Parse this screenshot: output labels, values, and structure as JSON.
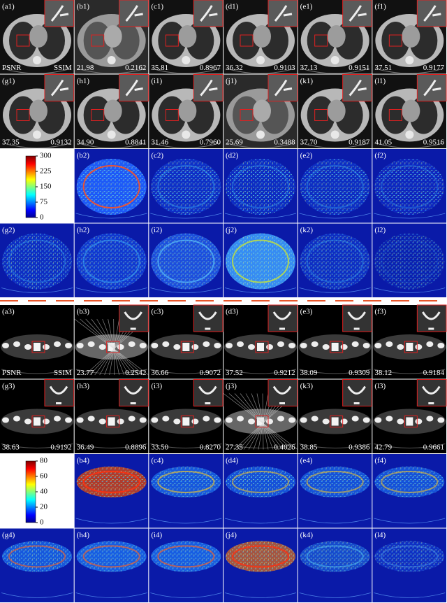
{
  "sections": [
    {
      "ct_panels": [
        {
          "label": "(a1)",
          "psnr": "PSNR",
          "ssim": "SSIM"
        },
        {
          "label": "(b1)",
          "psnr": "21.98",
          "ssim": "0.2162"
        },
        {
          "label": "(c1)",
          "psnr": "35.81",
          "ssim": "0.8967"
        },
        {
          "label": "(d1)",
          "psnr": "36.32",
          "ssim": "0.9103"
        },
        {
          "label": "(e1)",
          "psnr": "37.13",
          "ssim": "0.9151"
        },
        {
          "label": "(f1)",
          "psnr": "37.51",
          "ssim": "0.9177"
        },
        {
          "label": "(g1)",
          "psnr": "37.35",
          "ssim": "0.9132"
        },
        {
          "label": "(h1)",
          "psnr": "34.90",
          "ssim": "0.8841"
        },
        {
          "label": "(i1)",
          "psnr": "31.46",
          "ssim": "0.7960"
        },
        {
          "label": "(j1)",
          "psnr": "25.69",
          "ssim": "0.3488"
        },
        {
          "label": "(k1)",
          "psnr": "37.70",
          "ssim": "0.9187"
        },
        {
          "label": "(l1)",
          "psnr": "41.05",
          "ssim": "0.9516"
        }
      ],
      "error_labels": [
        "(b2)",
        "(c2)",
        "(d2)",
        "(e2)",
        "(f2)",
        "(g2)",
        "(h2)",
        "(i2)",
        "(j2)",
        "(k2)",
        "(l2)"
      ],
      "colorbar_ticks": [
        300,
        225,
        150,
        75,
        0
      ]
    },
    {
      "ct_panels": [
        {
          "label": "(a3)",
          "psnr": "PSNR",
          "ssim": "SSIM"
        },
        {
          "label": "(b3)",
          "psnr": "23.77",
          "ssim": "0.2542"
        },
        {
          "label": "(c3)",
          "psnr": "36.66",
          "ssim": "0.9072"
        },
        {
          "label": "(d3)",
          "psnr": "37.52",
          "ssim": "0.9212"
        },
        {
          "label": "(e3)",
          "psnr": "38.09",
          "ssim": "0.9309"
        },
        {
          "label": "(f3)",
          "psnr": "38.12",
          "ssim": "0.9184"
        },
        {
          "label": "(g3)",
          "psnr": "38.63",
          "ssim": "0.9192"
        },
        {
          "label": "(h3)",
          "psnr": "36.49",
          "ssim": "0.8896"
        },
        {
          "label": "(i3)",
          "psnr": "33.50",
          "ssim": "0.8270"
        },
        {
          "label": "(j3)",
          "psnr": "27.35",
          "ssim": "0.4026"
        },
        {
          "label": "(k3)",
          "psnr": "38.85",
          "ssim": "0.9386"
        },
        {
          "label": "(l3)",
          "psnr": "42.79",
          "ssim": "0.9661"
        }
      ],
      "error_labels": [
        "(b4)",
        "(c4)",
        "(d4)",
        "(e4)",
        "(f4)",
        "(g4)",
        "(h4)",
        "(i4)",
        "(j4)",
        "(k4)",
        "(l4)"
      ],
      "colorbar_ticks": [
        80,
        60,
        40,
        20,
        0
      ]
    }
  ]
}
